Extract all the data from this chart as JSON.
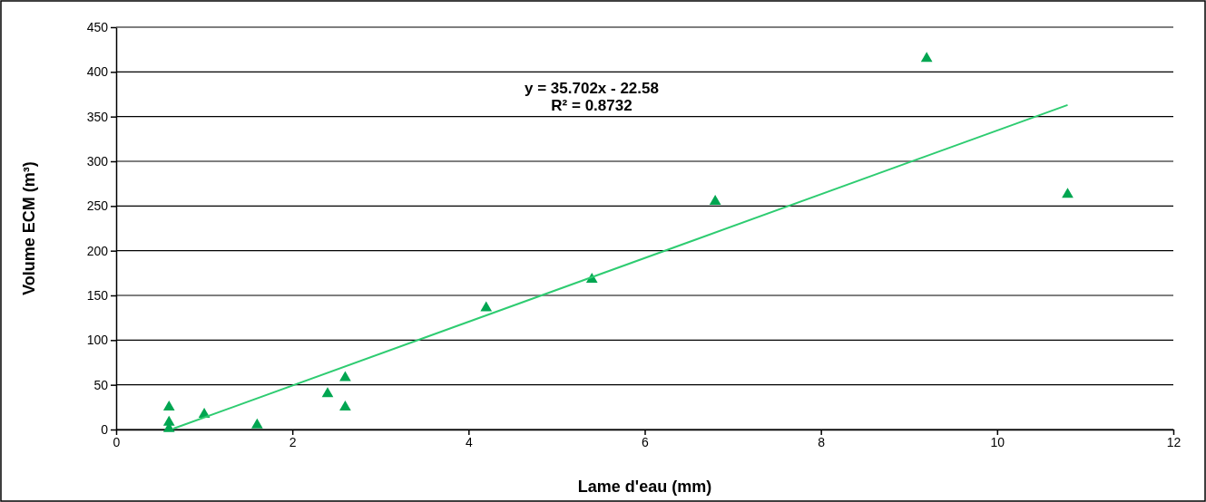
{
  "chart_data": {
    "type": "scatter",
    "xlabel": "Lame d'eau (mm)",
    "ylabel": "Volume ECM (m³)",
    "xlim": [
      0,
      12
    ],
    "xticks": [
      0,
      2,
      4,
      6,
      8,
      10,
      12
    ],
    "ylim": [
      0,
      450
    ],
    "yticks": [
      0,
      50,
      100,
      150,
      200,
      250,
      300,
      350,
      400,
      450
    ],
    "grid": "y",
    "marker": "triangle",
    "annotations": [
      "y = 35.702x - 22.58",
      "R² = 0.8732"
    ],
    "series": [
      {
        "color": "#00a651",
        "x": [
          0.6,
          0.6,
          0.6,
          1.0,
          1.6,
          2.4,
          2.6,
          2.6,
          4.2,
          5.4,
          6.8,
          9.2,
          10.8
        ],
        "values": [
          25,
          8,
          1,
          17,
          5,
          40,
          58,
          25,
          136,
          168,
          255,
          415,
          263
        ]
      },
      {
        "type": "line",
        "color": "#2ecc71",
        "marker": "none",
        "x": [
          0.65,
          10.8
        ],
        "values": [
          1,
          363
        ]
      }
    ]
  }
}
